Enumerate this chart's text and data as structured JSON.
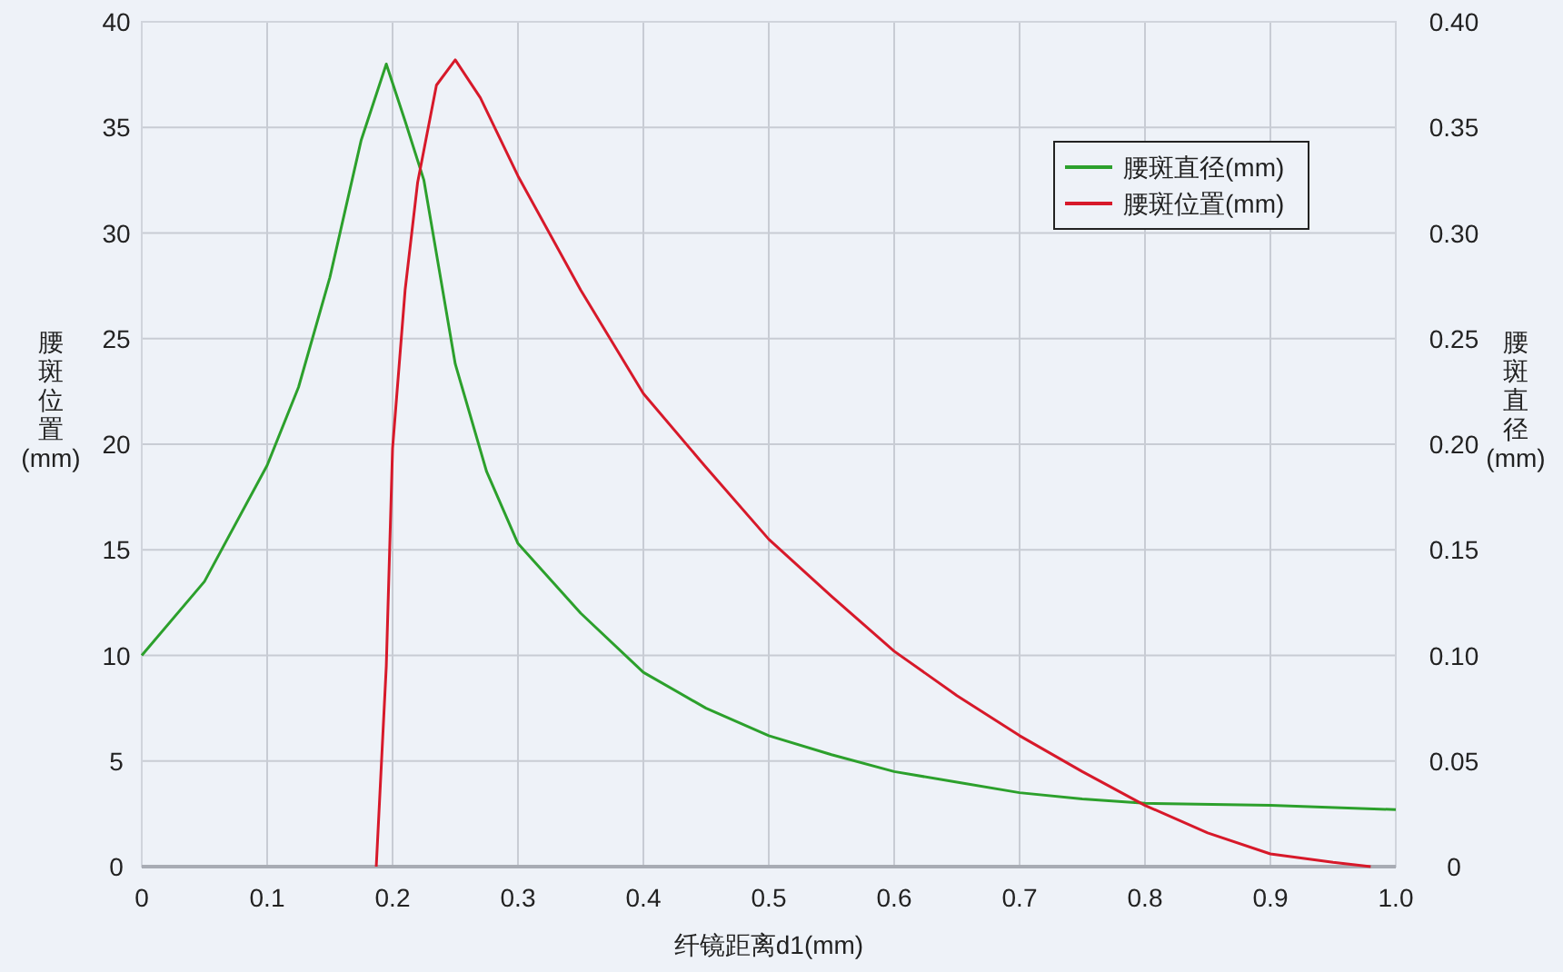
{
  "chart_data": {
    "type": "line",
    "xlabel": "纤镜距离d1(mm)",
    "ylabel": "腰斑位置(mm)",
    "y2label": "腰斑直径(mm)",
    "xlim": [
      0,
      1.0
    ],
    "xticks": [
      0,
      0.1,
      0.2,
      0.3,
      0.4,
      0.5,
      0.6,
      0.7,
      0.8,
      0.9,
      {
        "value": 1.0,
        "label": "1.0"
      }
    ],
    "ylim": [
      0,
      40
    ],
    "yticks": [
      0,
      5,
      10,
      15,
      20,
      25,
      30,
      35,
      40
    ],
    "y2lim": [
      0,
      0.4
    ],
    "y2ticks": [
      0,
      0.05,
      {
        "value": 0.1,
        "label": "0.10"
      },
      0.15,
      {
        "value": 0.2,
        "label": "0.20"
      },
      0.25,
      {
        "value": 0.3,
        "label": "0.30"
      },
      0.35,
      {
        "value": 0.4,
        "label": "0.40"
      }
    ],
    "grid": true,
    "legend": "top right",
    "marker": "none",
    "line_style": "solid",
    "series": [
      {
        "name": "腰斑直径(mm)",
        "color": "#2ca02c",
        "axis": "y2",
        "x": [
          0,
          0.05,
          0.1,
          0.125,
          0.15,
          0.175,
          0.195,
          0.21,
          0.225,
          0.25,
          0.275,
          0.3,
          0.35,
          0.4,
          0.45,
          0.5,
          0.55,
          0.6,
          0.65,
          0.7,
          0.75,
          0.8,
          0.9,
          1.0
        ],
        "values": [
          0.1,
          0.135,
          0.19,
          0.227,
          0.279,
          0.344,
          0.38,
          0.353,
          0.325,
          0.238,
          0.187,
          0.153,
          0.12,
          0.092,
          0.075,
          0.062,
          0.053,
          0.045,
          0.04,
          0.035,
          0.032,
          0.03,
          0.029,
          0.027
        ]
      },
      {
        "name": "腰斑位置(mm)",
        "color": "#d7192a",
        "x": [
          0.187,
          0.195,
          0.2,
          0.21,
          0.22,
          0.235,
          0.25,
          0.27,
          0.3,
          0.35,
          0.4,
          0.45,
          0.5,
          0.55,
          0.6,
          0.65,
          0.7,
          0.75,
          0.8,
          0.85,
          0.9,
          0.95,
          0.98
        ],
        "values": [
          0,
          9.5,
          19.8,
          27.3,
          32.4,
          37,
          38.2,
          36.4,
          32.7,
          27.3,
          22.4,
          18.9,
          15.5,
          12.8,
          10.2,
          8.1,
          6.2,
          4.5,
          2.9,
          1.6,
          0.6,
          0.2,
          0
        ]
      }
    ]
  }
}
